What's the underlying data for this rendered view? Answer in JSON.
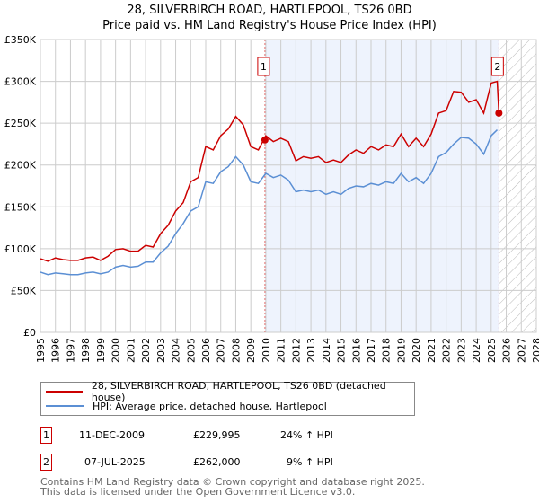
{
  "title": "28, SILVERBIRCH ROAD, HARTLEPOOL, TS26 0BD",
  "subtitle": "Price paid vs. HM Land Registry's House Price Index (HPI)",
  "chart_data": {
    "type": "line",
    "ylim": [
      0,
      350000
    ],
    "xlim": [
      1995,
      2028
    ],
    "yticks": [
      0,
      50000,
      100000,
      150000,
      200000,
      250000,
      300000,
      350000
    ],
    "ytick_labels": [
      "£0",
      "£50K",
      "£100K",
      "£150K",
      "£200K",
      "£250K",
      "£300K",
      "£350K"
    ],
    "xticks": [
      1995,
      1996,
      1997,
      1998,
      1999,
      2000,
      2001,
      2002,
      2003,
      2004,
      2005,
      2006,
      2007,
      2008,
      2009,
      2010,
      2011,
      2012,
      2013,
      2014,
      2015,
      2016,
      2017,
      2018,
      2019,
      2020,
      2021,
      2022,
      2023,
      2024,
      2025,
      2026,
      2027,
      2028
    ],
    "grid": true,
    "x": [
      1995,
      1995.5,
      1996,
      1996.5,
      1997,
      1997.5,
      1998,
      1998.5,
      1999,
      1999.5,
      2000,
      2000.5,
      2001,
      2001.5,
      2002,
      2002.5,
      2003,
      2003.5,
      2004,
      2004.5,
      2005,
      2005.5,
      2006,
      2006.5,
      2007,
      2007.5,
      2008,
      2008.5,
      2009,
      2009.5,
      2010,
      2010.5,
      2011,
      2011.5,
      2012,
      2012.5,
      2013,
      2013.5,
      2014,
      2014.5,
      2015,
      2015.5,
      2016,
      2016.5,
      2017,
      2017.5,
      2018,
      2018.5,
      2019,
      2019.5,
      2020,
      2020.5,
      2021,
      2021.5,
      2022,
      2022.5,
      2023,
      2023.5,
      2024,
      2024.5,
      2025,
      2025.4
    ],
    "series": [
      {
        "name": "28, SILVERBIRCH ROAD, HARTLEPOOL, TS26 0BD (detached house)",
        "color": "#cc0000",
        "values": [
          88000,
          85000,
          89000,
          87000,
          86000,
          86000,
          89000,
          90000,
          86000,
          91000,
          99000,
          100000,
          97000,
          97000,
          104000,
          102000,
          118000,
          128000,
          145000,
          155000,
          180000,
          185000,
          222000,
          218000,
          235000,
          243000,
          258000,
          248000,
          222000,
          218000,
          235000,
          228000,
          232000,
          228000,
          205000,
          210000,
          208000,
          210000,
          203000,
          206000,
          203000,
          212000,
          218000,
          214000,
          222000,
          218000,
          224000,
          222000,
          237000,
          222000,
          232000,
          222000,
          237000,
          262000,
          265000,
          288000,
          287000,
          275000,
          278000,
          262000,
          298000,
          300000
        ],
        "end": {
          "x": 2025.51,
          "y": 262000
        }
      },
      {
        "name": "HPI: Average price, detached house, Hartlepool",
        "color": "#5b8fd4",
        "values": [
          72000,
          69000,
          71000,
          70000,
          69000,
          69000,
          71000,
          72000,
          70000,
          72000,
          78000,
          80000,
          78000,
          79000,
          84000,
          84000,
          95000,
          103000,
          118000,
          130000,
          145000,
          150000,
          180000,
          178000,
          192000,
          198000,
          210000,
          200000,
          180000,
          178000,
          190000,
          185000,
          188000,
          182000,
          168000,
          170000,
          168000,
          170000,
          165000,
          168000,
          165000,
          172000,
          175000,
          174000,
          178000,
          176000,
          180000,
          178000,
          190000,
          180000,
          185000,
          178000,
          190000,
          210000,
          215000,
          225000,
          233000,
          232000,
          225000,
          213000,
          235000,
          242000
        ]
      }
    ],
    "sales": [
      {
        "label": "1",
        "x": 2009.94,
        "y": 229995,
        "date": "11-DEC-2009",
        "price": "£229,995",
        "hpi": "24% ↑ HPI"
      },
      {
        "label": "2",
        "x": 2025.51,
        "y": 262000,
        "date": "07-JUL-2025",
        "price": "£262,000",
        "hpi": "9% ↑ HPI"
      }
    ],
    "forecast_start": 2025.55,
    "legend_position": "bottom"
  },
  "footer": [
    "Contains HM Land Registry data © Crown copyright and database right 2025.",
    "This data is licensed under the Open Government Licence v3.0."
  ]
}
